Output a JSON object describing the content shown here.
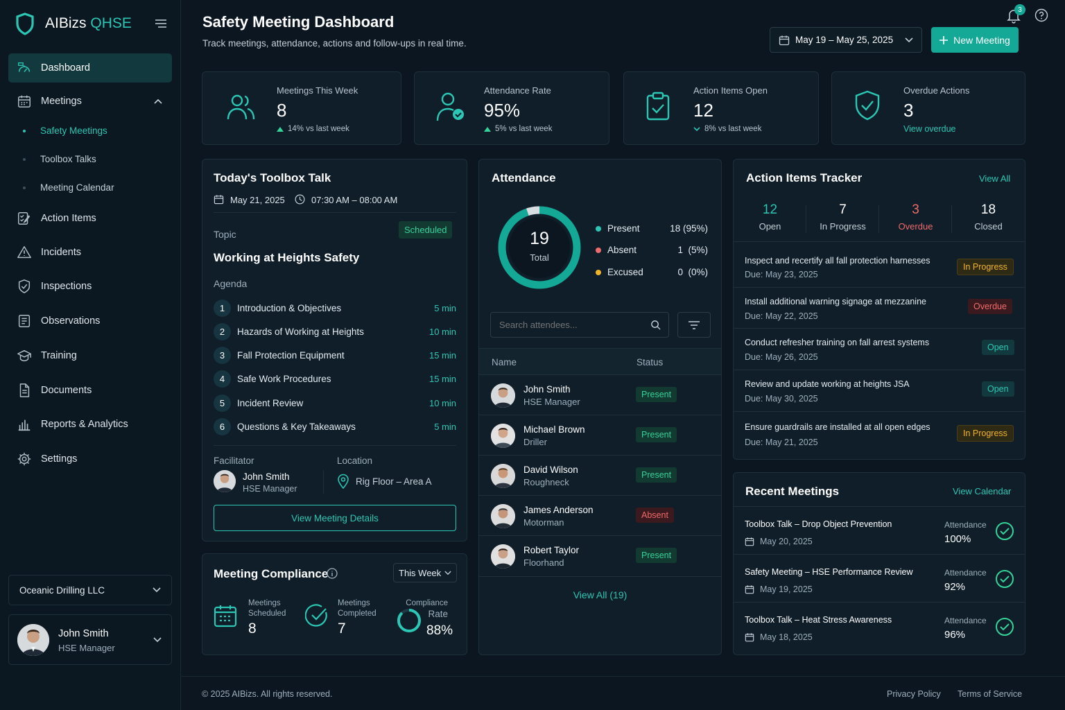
{
  "brand": {
    "name": "AIBizs",
    "suffix": "QHSE"
  },
  "colors": {
    "accent": "#2cc7b4",
    "background": "#0b1620",
    "card": "#0f1e29",
    "present": "#36d399",
    "absent": "#f06b6b",
    "excused": "#f0b429"
  },
  "sidebar": {
    "items": [
      {
        "label": "Dashboard",
        "icon": "dashboard-icon"
      },
      {
        "label": "Meetings",
        "icon": "calendar-icon"
      },
      {
        "label": "Action Items",
        "icon": "action-items-icon"
      },
      {
        "label": "Incidents",
        "icon": "warning-icon"
      },
      {
        "label": "Inspections",
        "icon": "shield-icon"
      },
      {
        "label": "Observations",
        "icon": "observations-icon"
      },
      {
        "label": "Training",
        "icon": "training-icon"
      },
      {
        "label": "Documents",
        "icon": "document-icon"
      },
      {
        "label": "Reports & Analytics",
        "icon": "chart-icon"
      },
      {
        "label": "Settings",
        "icon": "gear-icon"
      }
    ],
    "submenu": [
      "Safety Meetings",
      "Toolbox Talks",
      "Meeting Calendar"
    ],
    "org": "Oceanic Drilling LLC",
    "user": {
      "name": "John Smith",
      "role": "HSE Manager"
    }
  },
  "header": {
    "title": "Safety Meeting Dashboard",
    "subtitle": "Track meetings, attendance, actions and follow-ups in real time.",
    "date_range": "May 19 – May 25, 2025",
    "new_meeting": "New Meeting",
    "notification_count": "3"
  },
  "stats": [
    {
      "label": "Meetings This Week",
      "value": "8",
      "sub": "14% vs last week",
      "trend": "up"
    },
    {
      "label": "Attendance Rate",
      "value": "95%",
      "sub": "5% vs last week",
      "trend": "up"
    },
    {
      "label": "Action Items Open",
      "value": "12",
      "sub": "8% vs last week",
      "trend": "down"
    },
    {
      "label": "Overdue Actions",
      "value": "3",
      "sub": "View overdue"
    }
  ],
  "toolbox": {
    "title": "Today's Toolbox Talk",
    "date": "May 21, 2025",
    "time": "07:30 AM – 08:00 AM",
    "topic_label": "Topic",
    "status": "Scheduled",
    "topic": "Working at Heights Safety",
    "agenda_label": "Agenda",
    "agenda": [
      {
        "n": "1",
        "title": "Introduction & Objectives",
        "dur": "5 min"
      },
      {
        "n": "2",
        "title": "Hazards of Working at Heights",
        "dur": "10 min"
      },
      {
        "n": "3",
        "title": "Fall Protection Equipment",
        "dur": "15 min"
      },
      {
        "n": "4",
        "title": "Safe Work Procedures",
        "dur": "15 min"
      },
      {
        "n": "5",
        "title": "Incident Review",
        "dur": "10 min"
      },
      {
        "n": "6",
        "title": "Questions & Key Takeaways",
        "dur": "5 min"
      }
    ],
    "facilitator_label": "Facilitator",
    "facilitator": {
      "name": "John Smith",
      "role": "HSE Manager"
    },
    "location_label": "Location",
    "location": "Rig Floor – Area A",
    "details_button": "View Meeting Details"
  },
  "compliance": {
    "title": "Meeting Compliance",
    "period": "This Week",
    "scheduled_label_1": "Meetings",
    "scheduled_label_2": "Scheduled",
    "scheduled": "8",
    "completed_label_1": "Meetings",
    "completed_label_2": "Completed",
    "completed": "7",
    "rate_label_1": "Compliance",
    "rate_label_2": "Rate",
    "rate": "88%",
    "rate_value": 0.88
  },
  "attendance": {
    "title": "Attendance",
    "total": "19",
    "total_label": "Total",
    "legend": [
      {
        "label": "Present",
        "value": "18 (95%)",
        "count": 18
      },
      {
        "label": "Absent",
        "value": "1  (5%)",
        "count": 1
      },
      {
        "label": "Excused",
        "value": "0  (0%)",
        "count": 0
      }
    ],
    "search_placeholder": "Search attendees...",
    "col_name": "Name",
    "col_status": "Status",
    "rows": [
      {
        "name": "John Smith",
        "role": "HSE Manager",
        "status": "Present"
      },
      {
        "name": "Michael Brown",
        "role": "Driller",
        "status": "Present"
      },
      {
        "name": "David Wilson",
        "role": "Roughneck",
        "status": "Present"
      },
      {
        "name": "James Anderson",
        "role": "Motorman",
        "status": "Absent"
      },
      {
        "name": "Robert Taylor",
        "role": "Floorhand",
        "status": "Present"
      }
    ],
    "view_all": "View All (19)"
  },
  "actions": {
    "title": "Action Items Tracker",
    "view_all": "View All",
    "summary": [
      {
        "value": "12",
        "label": "Open"
      },
      {
        "value": "7",
        "label": "In Progress"
      },
      {
        "value": "3",
        "label": "Overdue"
      },
      {
        "value": "18",
        "label": "Closed"
      }
    ],
    "items": [
      {
        "title": "Inspect and recertify all fall protection harnesses",
        "due": "Due: May 23, 2025",
        "status": "In Progress"
      },
      {
        "title": "Install additional warning signage at mezzanine",
        "due": "Due: May 22, 2025",
        "status": "Overdue"
      },
      {
        "title": "Conduct refresher training on fall arrest systems",
        "due": "Due: May 26, 2025",
        "status": "Open"
      },
      {
        "title": "Review and update working at heights JSA",
        "due": "Due: May 30, 2025",
        "status": "Open"
      },
      {
        "title": "Ensure guardrails are installed at all open edges",
        "due": "Due: May 21, 2025",
        "status": "In Progress"
      }
    ]
  },
  "recent": {
    "title": "Recent Meetings",
    "view_calendar": "View Calendar",
    "attendance_label": "Attendance",
    "items": [
      {
        "title": "Toolbox Talk – Drop Object Prevention",
        "date": "May 20, 2025",
        "attendance": "100%"
      },
      {
        "title": "Safety Meeting – HSE Performance Review",
        "date": "May 19, 2025",
        "attendance": "92%"
      },
      {
        "title": "Toolbox Talk – Heat Stress Awareness",
        "date": "May 18, 2025",
        "attendance": "96%"
      }
    ]
  },
  "footer": {
    "copyright": "© 2025 AIBizs. All rights reserved.",
    "privacy": "Privacy Policy",
    "terms": "Terms of Service"
  }
}
